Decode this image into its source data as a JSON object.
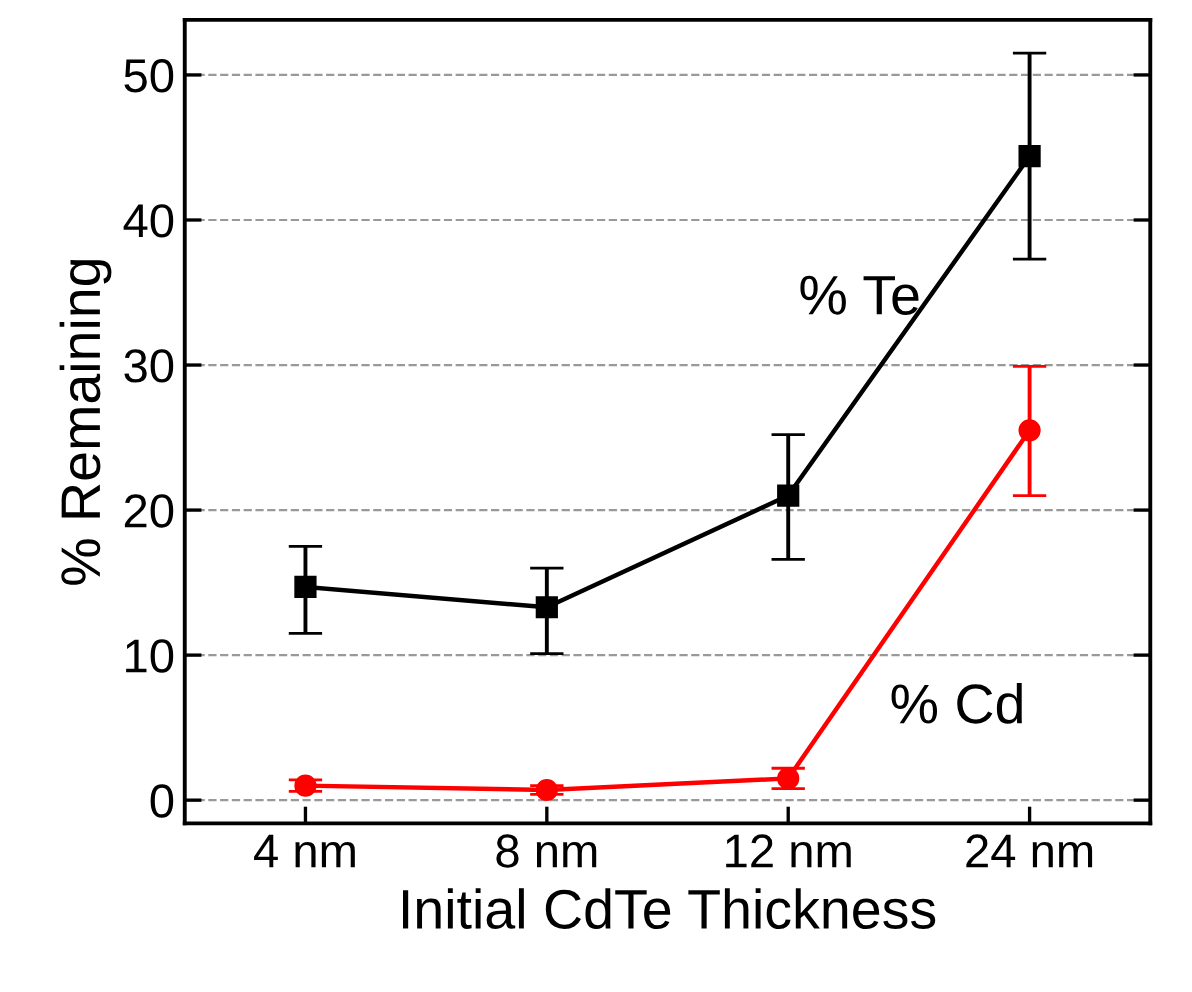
{
  "chart_data": {
    "type": "line",
    "xlabel": "Initial CdTe Thickness",
    "ylabel": "% Remaining",
    "categories": [
      "4 nm",
      "8 nm",
      "12 nm",
      "24 nm"
    ],
    "series": [
      {
        "name": "% Te",
        "color": "#000000",
        "marker": "square",
        "values": [
          14.7,
          13.3,
          21.0,
          44.4
        ],
        "errors": [
          [
            11.5,
            17.5
          ],
          [
            10.1,
            16.0
          ],
          [
            16.6,
            25.2
          ],
          [
            37.3,
            51.5
          ]
        ]
      },
      {
        "name": "% Cd",
        "color": "#ff0000",
        "marker": "circle",
        "values": [
          1.0,
          0.7,
          1.5,
          25.5
        ],
        "errors": [
          0.4,
          0.3,
          0.7,
          [
            21.0,
            29.9
          ]
        ]
      }
    ],
    "ylim": [
      -1.6,
      53.8
    ],
    "yticks": [
      0,
      10,
      20,
      30,
      40,
      50
    ],
    "grid": "y"
  }
}
